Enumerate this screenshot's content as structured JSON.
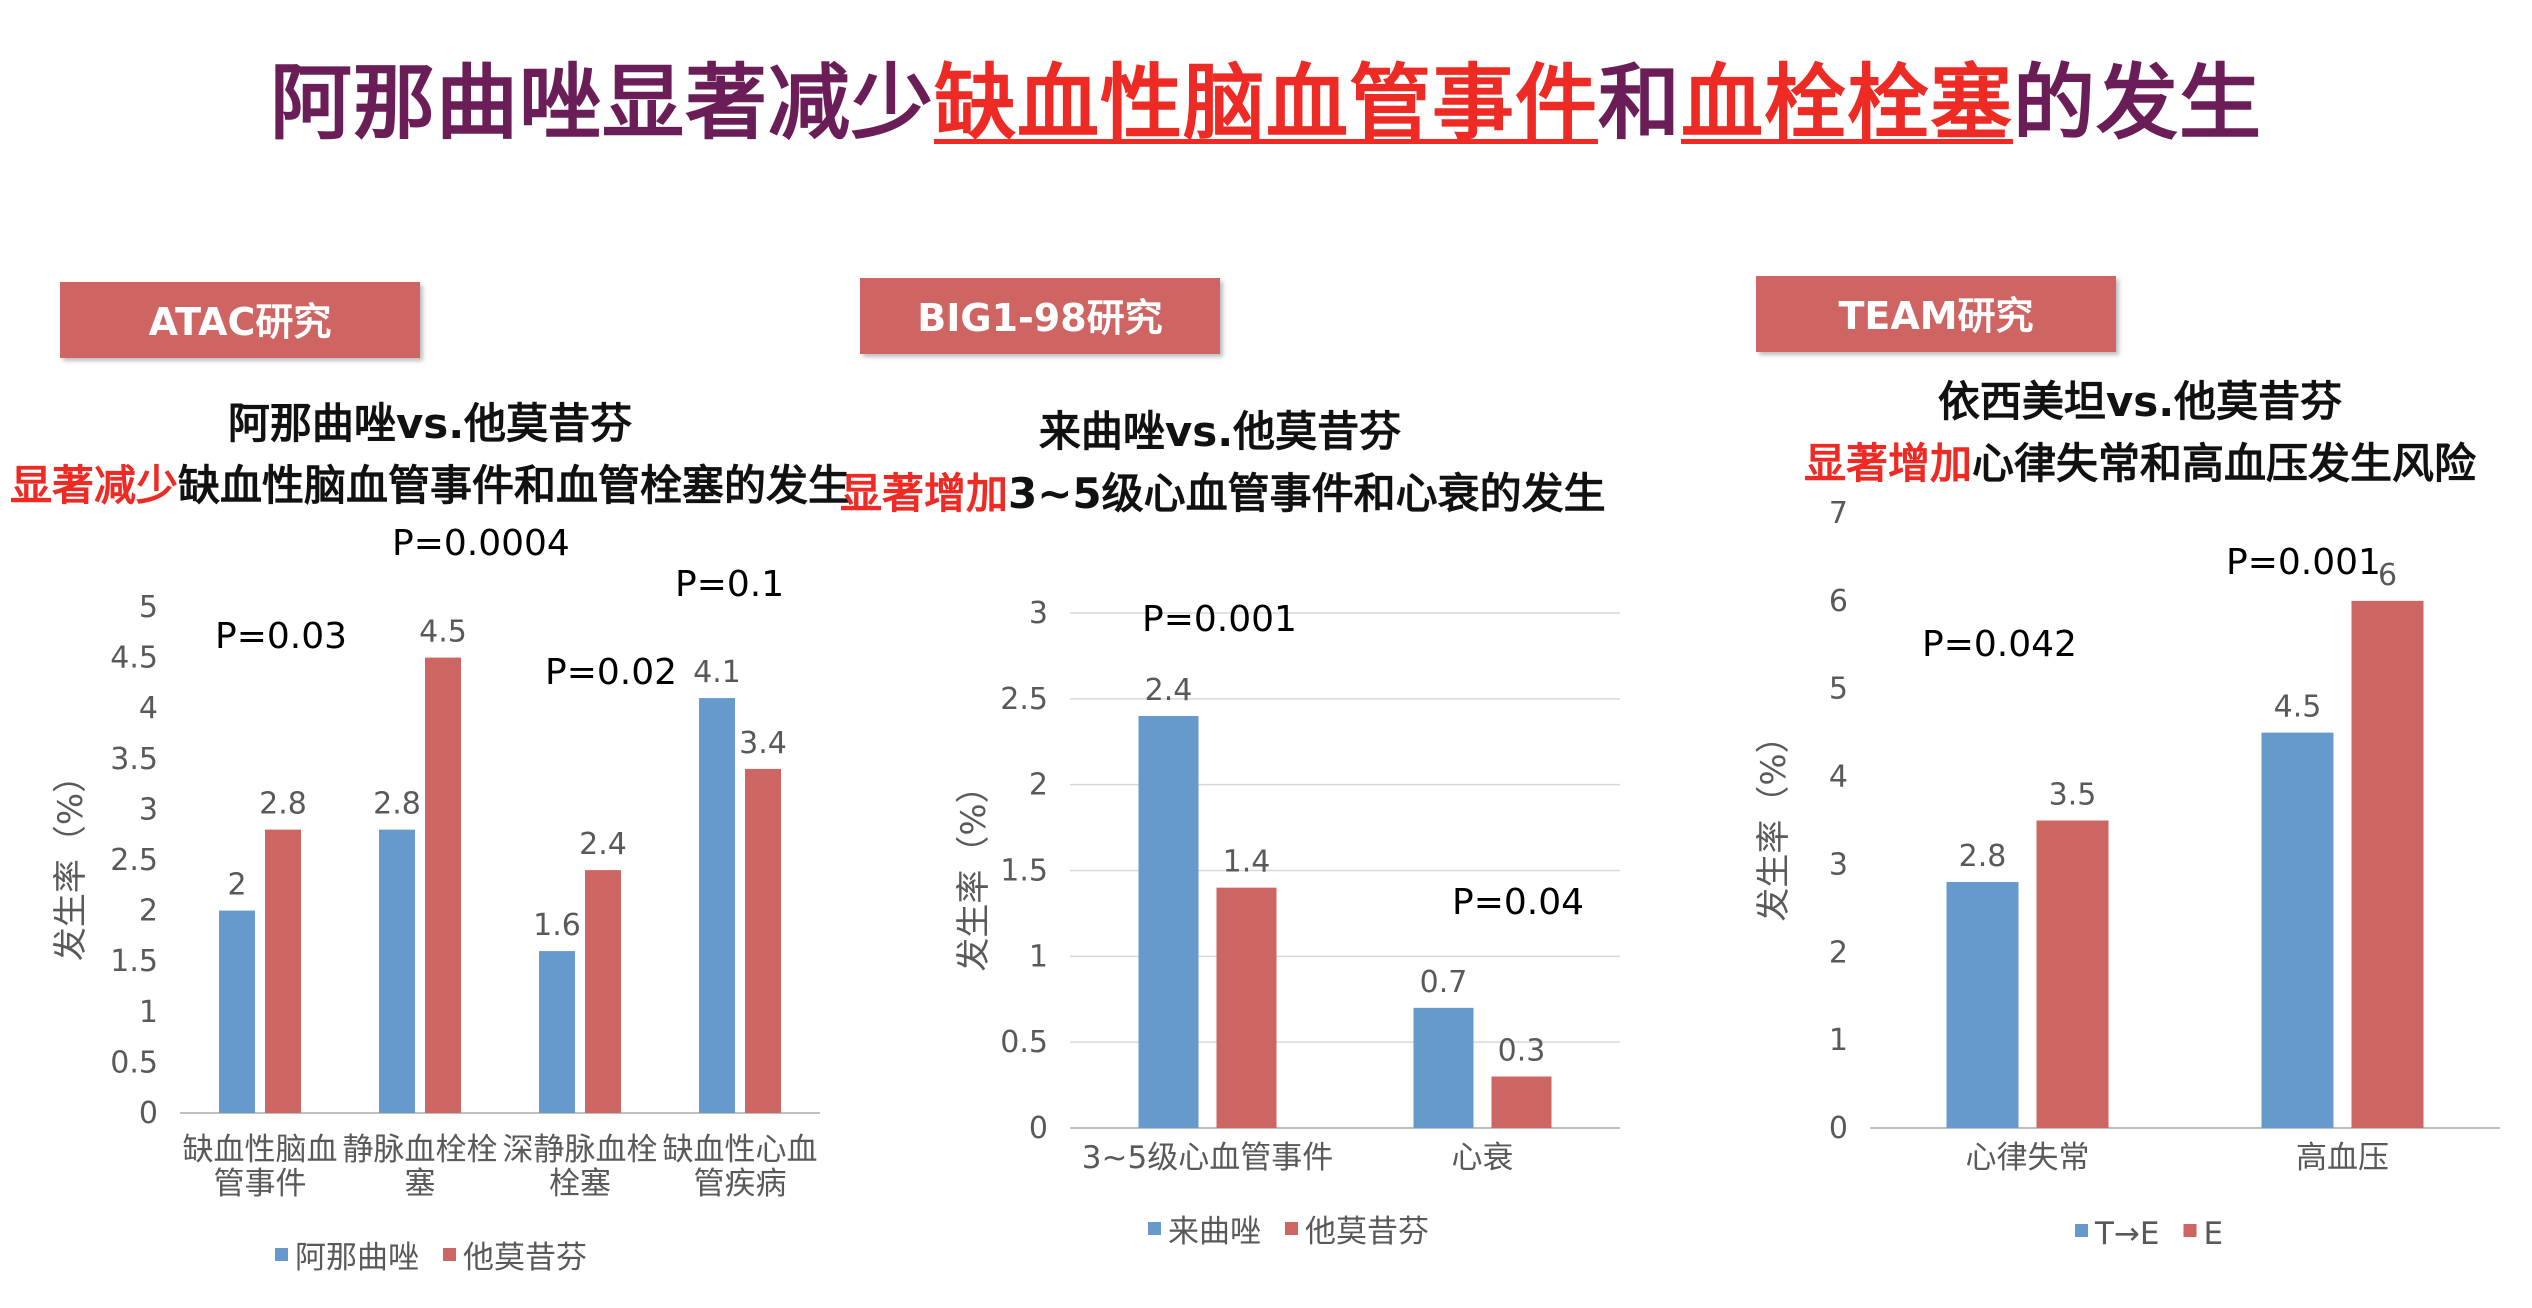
{
  "title": {
    "prefix": "阿那曲唑显著减少",
    "highlight1": "缺血性脑血管事件",
    "mid": "和",
    "highlight2": "血栓栓塞",
    "suffix": "的发生"
  },
  "panels": [
    {
      "study": "ATAC研究",
      "line1": "阿那曲唑vs.他莫昔芬",
      "line2_red": "显著减少",
      "line2_rest": "缺血性脑血管事件和血管栓塞的发生"
    },
    {
      "study": "BIG1-98研究",
      "line1": "来曲唑vs.他莫昔芬",
      "line2_red": "显著增加",
      "line2_rest": "3~5级心血管事件和心衰的发生"
    },
    {
      "study": "TEAM研究",
      "line1": "依西美坦vs.他莫昔芬",
      "line2_red": "显著增加",
      "line2_rest": "心律失常和高血压发生风险"
    }
  ],
  "colors": {
    "blue": "#6699cc",
    "red": "#cd6562",
    "axis": "#bfbfbf",
    "grid": "#d9d9d9",
    "text": "#595959"
  },
  "chart_data": [
    {
      "type": "bar",
      "ylabel": "发生率（%）",
      "ylim": [
        0,
        5
      ],
      "yticks": [
        "0",
        "0.5",
        "1",
        "1.5",
        "2",
        "2.5",
        "3",
        "3.5",
        "4",
        "4.5",
        "5"
      ],
      "grid": false,
      "categories": [
        [
          "缺血性脑血",
          "管事件"
        ],
        [
          "静脉血栓栓",
          "塞"
        ],
        [
          "深静脉血栓",
          "栓塞"
        ],
        [
          "缺血性心血",
          "管疾病"
        ]
      ],
      "series": [
        {
          "name": "阿那曲唑",
          "values": [
            2,
            2.8,
            1.6,
            4.1
          ]
        },
        {
          "name": "他莫昔芬",
          "values": [
            2.8,
            4.5,
            2.4,
            3.4
          ]
        }
      ],
      "p_values": [
        "P=0.03",
        "P=0.0004",
        "P=0.02",
        "P=0.1"
      ],
      "legend": [
        "阿那曲唑",
        "他莫昔芬"
      ]
    },
    {
      "type": "bar",
      "ylabel": "发生率（%）",
      "ylim": [
        0,
        3
      ],
      "yticks": [
        "0",
        "0.5",
        "1",
        "1.5",
        "2",
        "2.5",
        "3"
      ],
      "grid": true,
      "categories": [
        [
          "3~5级心血管事件"
        ],
        [
          "心衰"
        ]
      ],
      "series": [
        {
          "name": "来曲唑",
          "values": [
            2.4,
            0.7
          ]
        },
        {
          "name": "他莫昔芬",
          "values": [
            1.4,
            0.3
          ]
        }
      ],
      "p_values": [
        "P=0.001",
        "P=0.04"
      ],
      "legend": [
        "来曲唑",
        "他莫昔芬"
      ]
    },
    {
      "type": "bar",
      "ylabel": "发生率（%）",
      "ylim": [
        0,
        7
      ],
      "yticks": [
        "0",
        "1",
        "2",
        "3",
        "4",
        "5",
        "6",
        "7"
      ],
      "grid": false,
      "categories": [
        [
          "心律失常"
        ],
        [
          "高血压"
        ]
      ],
      "series": [
        {
          "name": "T→E",
          "values": [
            2.8,
            4.5
          ]
        },
        {
          "name": "E",
          "values": [
            3.5,
            6
          ]
        }
      ],
      "p_values": [
        "P=0.042",
        "P=0.001"
      ],
      "legend": [
        "T→E",
        "E"
      ]
    }
  ]
}
